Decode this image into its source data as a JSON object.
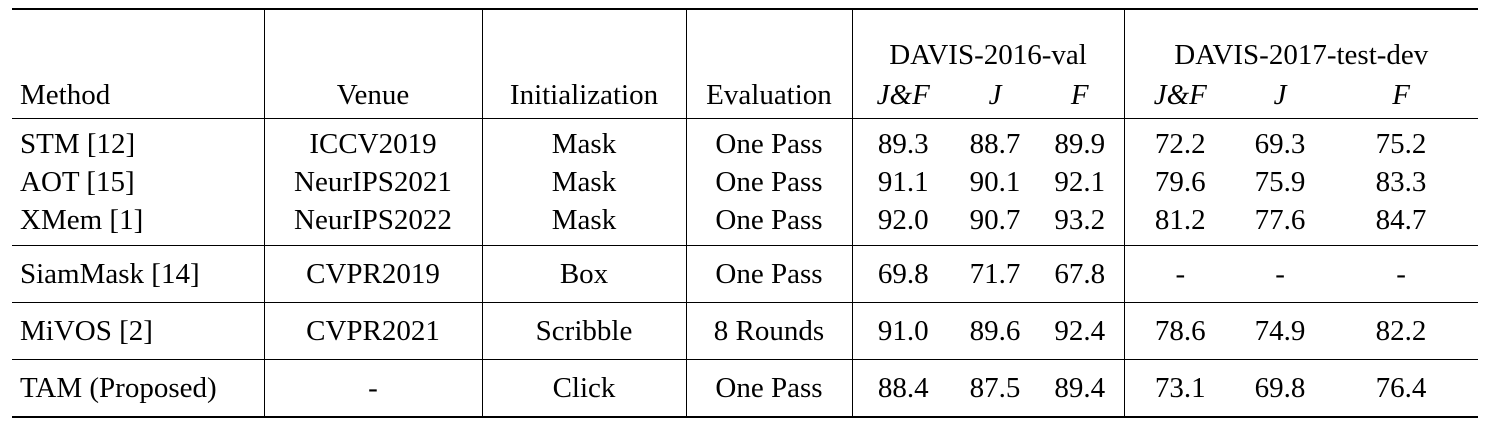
{
  "header": {
    "method": "Method",
    "venue": "Venue",
    "initialization": "Initialization",
    "evaluation": "Evaluation",
    "group1": "DAVIS-2016-val",
    "group2": "DAVIS-2017-test-dev",
    "jf": "J&F",
    "j": "J",
    "f": "F"
  },
  "rows": [
    {
      "method": "STM [12]",
      "venue": "ICCV2019",
      "init": "Mask",
      "eval": "One Pass",
      "d16_jf": "89.3",
      "d16_j": "88.7",
      "d16_f": "89.9",
      "d17_jf": "72.2",
      "d17_j": "69.3",
      "d17_f": "75.2"
    },
    {
      "method": "AOT [15]",
      "venue": "NeurIPS2021",
      "init": "Mask",
      "eval": "One Pass",
      "d16_jf": "91.1",
      "d16_j": "90.1",
      "d16_f": "92.1",
      "d17_jf": "79.6",
      "d17_j": "75.9",
      "d17_f": "83.3"
    },
    {
      "method": "XMem [1]",
      "venue": "NeurIPS2022",
      "init": "Mask",
      "eval": "One Pass",
      "d16_jf": "92.0",
      "d16_j": "90.7",
      "d16_f": "93.2",
      "d17_jf": "81.2",
      "d17_j": "77.6",
      "d17_f": "84.7"
    },
    {
      "method": "SiamMask [14]",
      "venue": "CVPR2019",
      "init": "Box",
      "eval": "One Pass",
      "d16_jf": "69.8",
      "d16_j": "71.7",
      "d16_f": "67.8",
      "d17_jf": "-",
      "d17_j": "-",
      "d17_f": "-"
    },
    {
      "method": "MiVOS [2]",
      "venue": "CVPR2021",
      "init": "Scribble",
      "eval": "8 Rounds",
      "d16_jf": "91.0",
      "d16_j": "89.6",
      "d16_f": "92.4",
      "d17_jf": "78.6",
      "d17_j": "74.9",
      "d17_f": "82.2"
    },
    {
      "method": "TAM (Proposed)",
      "venue": "-",
      "init": "Click",
      "eval": "One Pass",
      "d16_jf": "88.4",
      "d16_j": "87.5",
      "d16_f": "89.4",
      "d17_jf": "73.1",
      "d17_j": "69.8",
      "d17_f": "76.4"
    }
  ]
}
